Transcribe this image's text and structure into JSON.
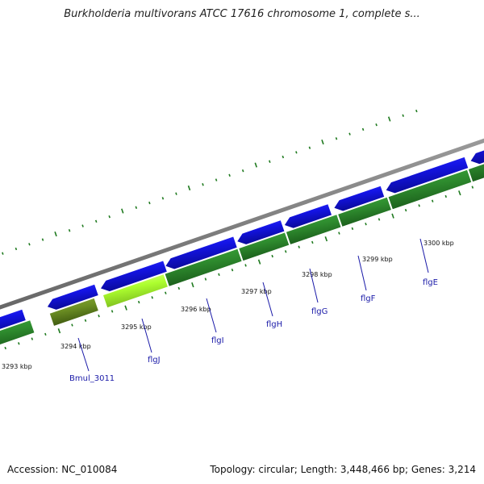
{
  "title": "Burkholderia multivorans ATCC 17616 chromosome 1, complete s...",
  "footer": {
    "accession": "Accession: NC_010084",
    "summary": "Topology: circular; Length: 3,448,466 bp; Genes: 3,214"
  },
  "colors": {
    "backbone": "#8c8c8c",
    "forward_cds": "#1414e6",
    "reverse_cds": "#2e8b2e",
    "highlight": "#adff2f",
    "pseudo": "#6b8e23",
    "label": "#1a1aa8",
    "tick": "#1f7a1f"
  },
  "scale": [
    {
      "label": "3293 kbp"
    },
    {
      "label": "3294 kbp"
    },
    {
      "label": "3295 kbp"
    },
    {
      "label": "3296 kbp"
    },
    {
      "label": "3297 kbp"
    },
    {
      "label": "3298 kbp"
    },
    {
      "label": "3299 kbp"
    },
    {
      "label": "3300 kbp"
    }
  ],
  "genes": [
    {
      "name": "Bmul_3011"
    },
    {
      "name": "flgJ"
    },
    {
      "name": "flgI"
    },
    {
      "name": "flgH"
    },
    {
      "name": "flgG"
    },
    {
      "name": "flgF"
    },
    {
      "name": "flgE"
    }
  ]
}
